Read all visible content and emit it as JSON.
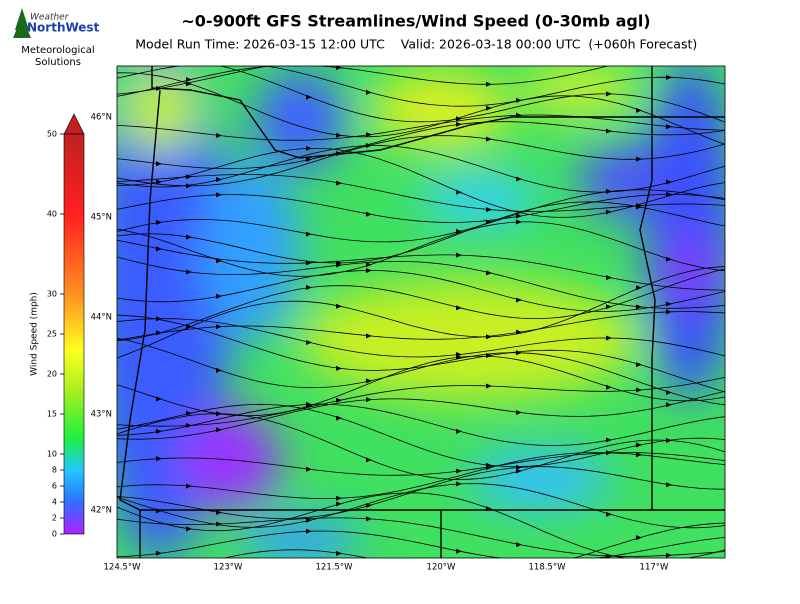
{
  "header": {
    "title": "~0-900ft GFS Streamlines/Wind Speed (0-30mb agl)",
    "model_run": "Model Run Time: 2026-03-15 12:00 UTC",
    "valid": "Valid: 2026-03-18 00:00 UTC  (+060h Forecast)"
  },
  "logo": {
    "brand_top": "Weather",
    "brand": "NorthWest",
    "org": [
      "Meteorological",
      "Solutions"
    ]
  },
  "colorbar": {
    "label": "Wind Speed (mph)",
    "range": [
      0,
      50
    ],
    "ticks": [
      0,
      2,
      4,
      6,
      8,
      10,
      15,
      20,
      25,
      30,
      40,
      50
    ]
  },
  "map": {
    "lat_labels": [
      "46°N",
      "45°N",
      "44°N",
      "43°N",
      "42°N"
    ],
    "lon_labels": [
      "124.5°W",
      "123°W",
      "121.5°W",
      "120°W",
      "118.5°W",
      "117°W"
    ]
  }
}
